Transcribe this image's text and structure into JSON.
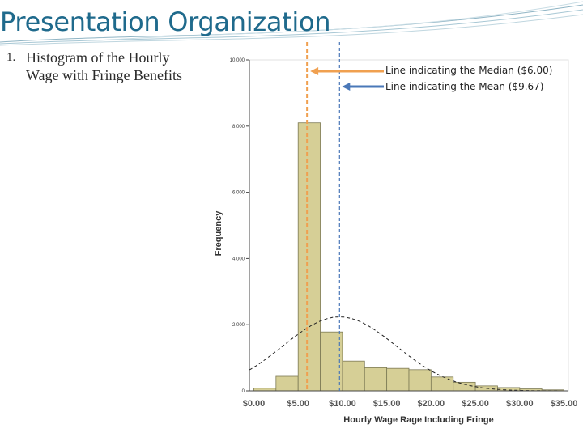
{
  "slide": {
    "title": "Presentation Organization",
    "bullet_number": "1.",
    "bullet_line1": "Histogram of the Hourly",
    "bullet_line2": "Wage with Fringe Benefits"
  },
  "annotations": {
    "median_label": "Line indicating the Median ($6.00)",
    "mean_label": "Line indicating the Mean ($9.67)",
    "median_color": "#f0a050",
    "mean_color": "#4a78b8"
  },
  "chart_data": {
    "type": "bar",
    "title": "",
    "xlabel": "Hourly Wage Rage Including Fringe",
    "ylabel": "Frequency",
    "bin_width": 2.5,
    "bin_starts": [
      0,
      2.5,
      5,
      7.5,
      10,
      12.5,
      15,
      17.5,
      20,
      22.5,
      25,
      27.5,
      30,
      32.5
    ],
    "values": [
      80,
      440,
      8100,
      1780,
      900,
      700,
      680,
      640,
      420,
      260,
      150,
      100,
      60,
      30
    ],
    "xlim": [
      -0.5,
      35.5
    ],
    "ylim": [
      0,
      10000
    ],
    "x_ticks": [
      0,
      5,
      10,
      15,
      20,
      25,
      30,
      35
    ],
    "x_tick_labels": [
      "$0.00",
      "$5.00",
      "$10.00",
      "$15.00",
      "$20.00",
      "$25.00",
      "$30.00",
      "$35.00"
    ],
    "y_ticks": [
      0,
      2000,
      4000,
      6000,
      8000,
      10000
    ],
    "y_tick_labels": [
      "0",
      "2,000",
      "4,000",
      "6,000",
      "8,000",
      "10,000"
    ],
    "median": 6.0,
    "mean": 9.67,
    "bar_color": "#d6cf96",
    "normal_curve": {
      "mean": 9.67,
      "sd": 6.4,
      "shown": true
    },
    "grid": false
  }
}
